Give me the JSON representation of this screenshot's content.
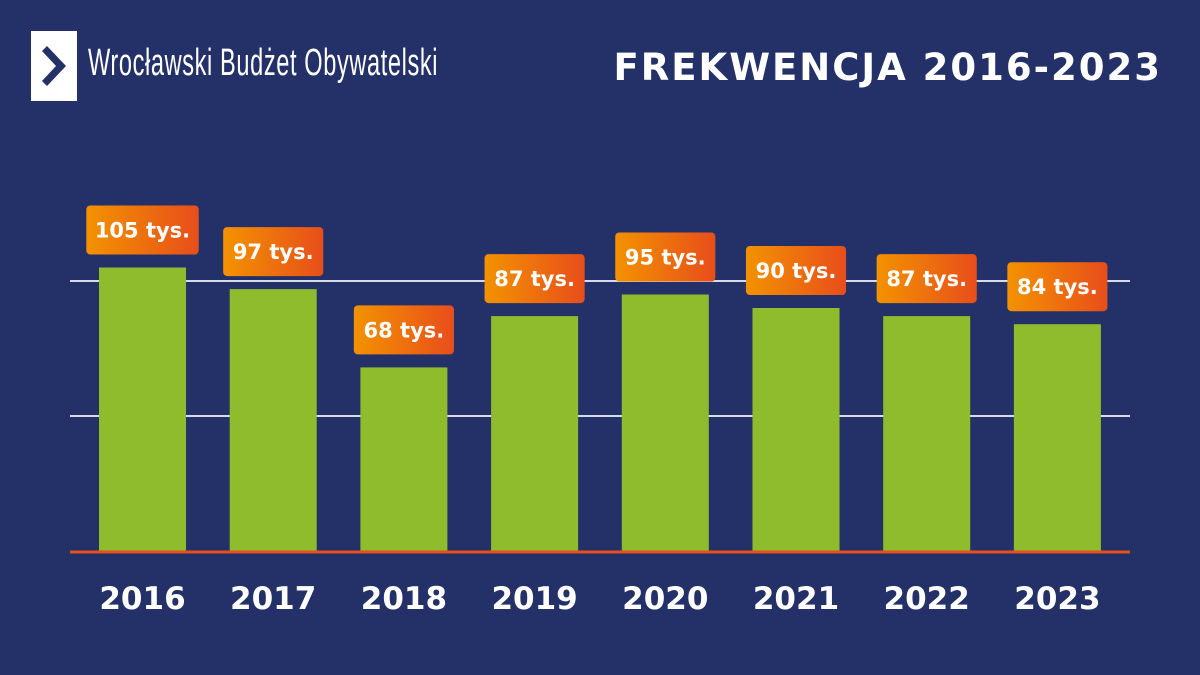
{
  "header": {
    "logo_text": "Wrocławski Budżet Obywatelski",
    "title": "FREKWENCJA 2016-2023"
  },
  "colors": {
    "background": "#243168",
    "bar": "#8fbc2c",
    "label_gradient": [
      "#f39200",
      "#e84e1b"
    ],
    "baseline": "#e84e1b",
    "grid": "#d8dbe8"
  },
  "chart_data": {
    "type": "bar",
    "title": "FREKWENCJA 2016-2023",
    "categories": [
      "2016",
      "2017",
      "2018",
      "2019",
      "2020",
      "2021",
      "2022",
      "2023"
    ],
    "values": [
      105,
      97,
      68,
      87,
      95,
      90,
      87,
      84
    ],
    "unit": "tys.",
    "data_labels": [
      "105 tys.",
      "97 tys.",
      "68 tys.",
      "87 tys.",
      "95 tys.",
      "90 tys.",
      "87 tys.",
      "84 tys."
    ],
    "ylim": [
      0,
      100
    ],
    "gridlines": [
      50,
      100
    ],
    "grid": true,
    "legend": "none"
  }
}
